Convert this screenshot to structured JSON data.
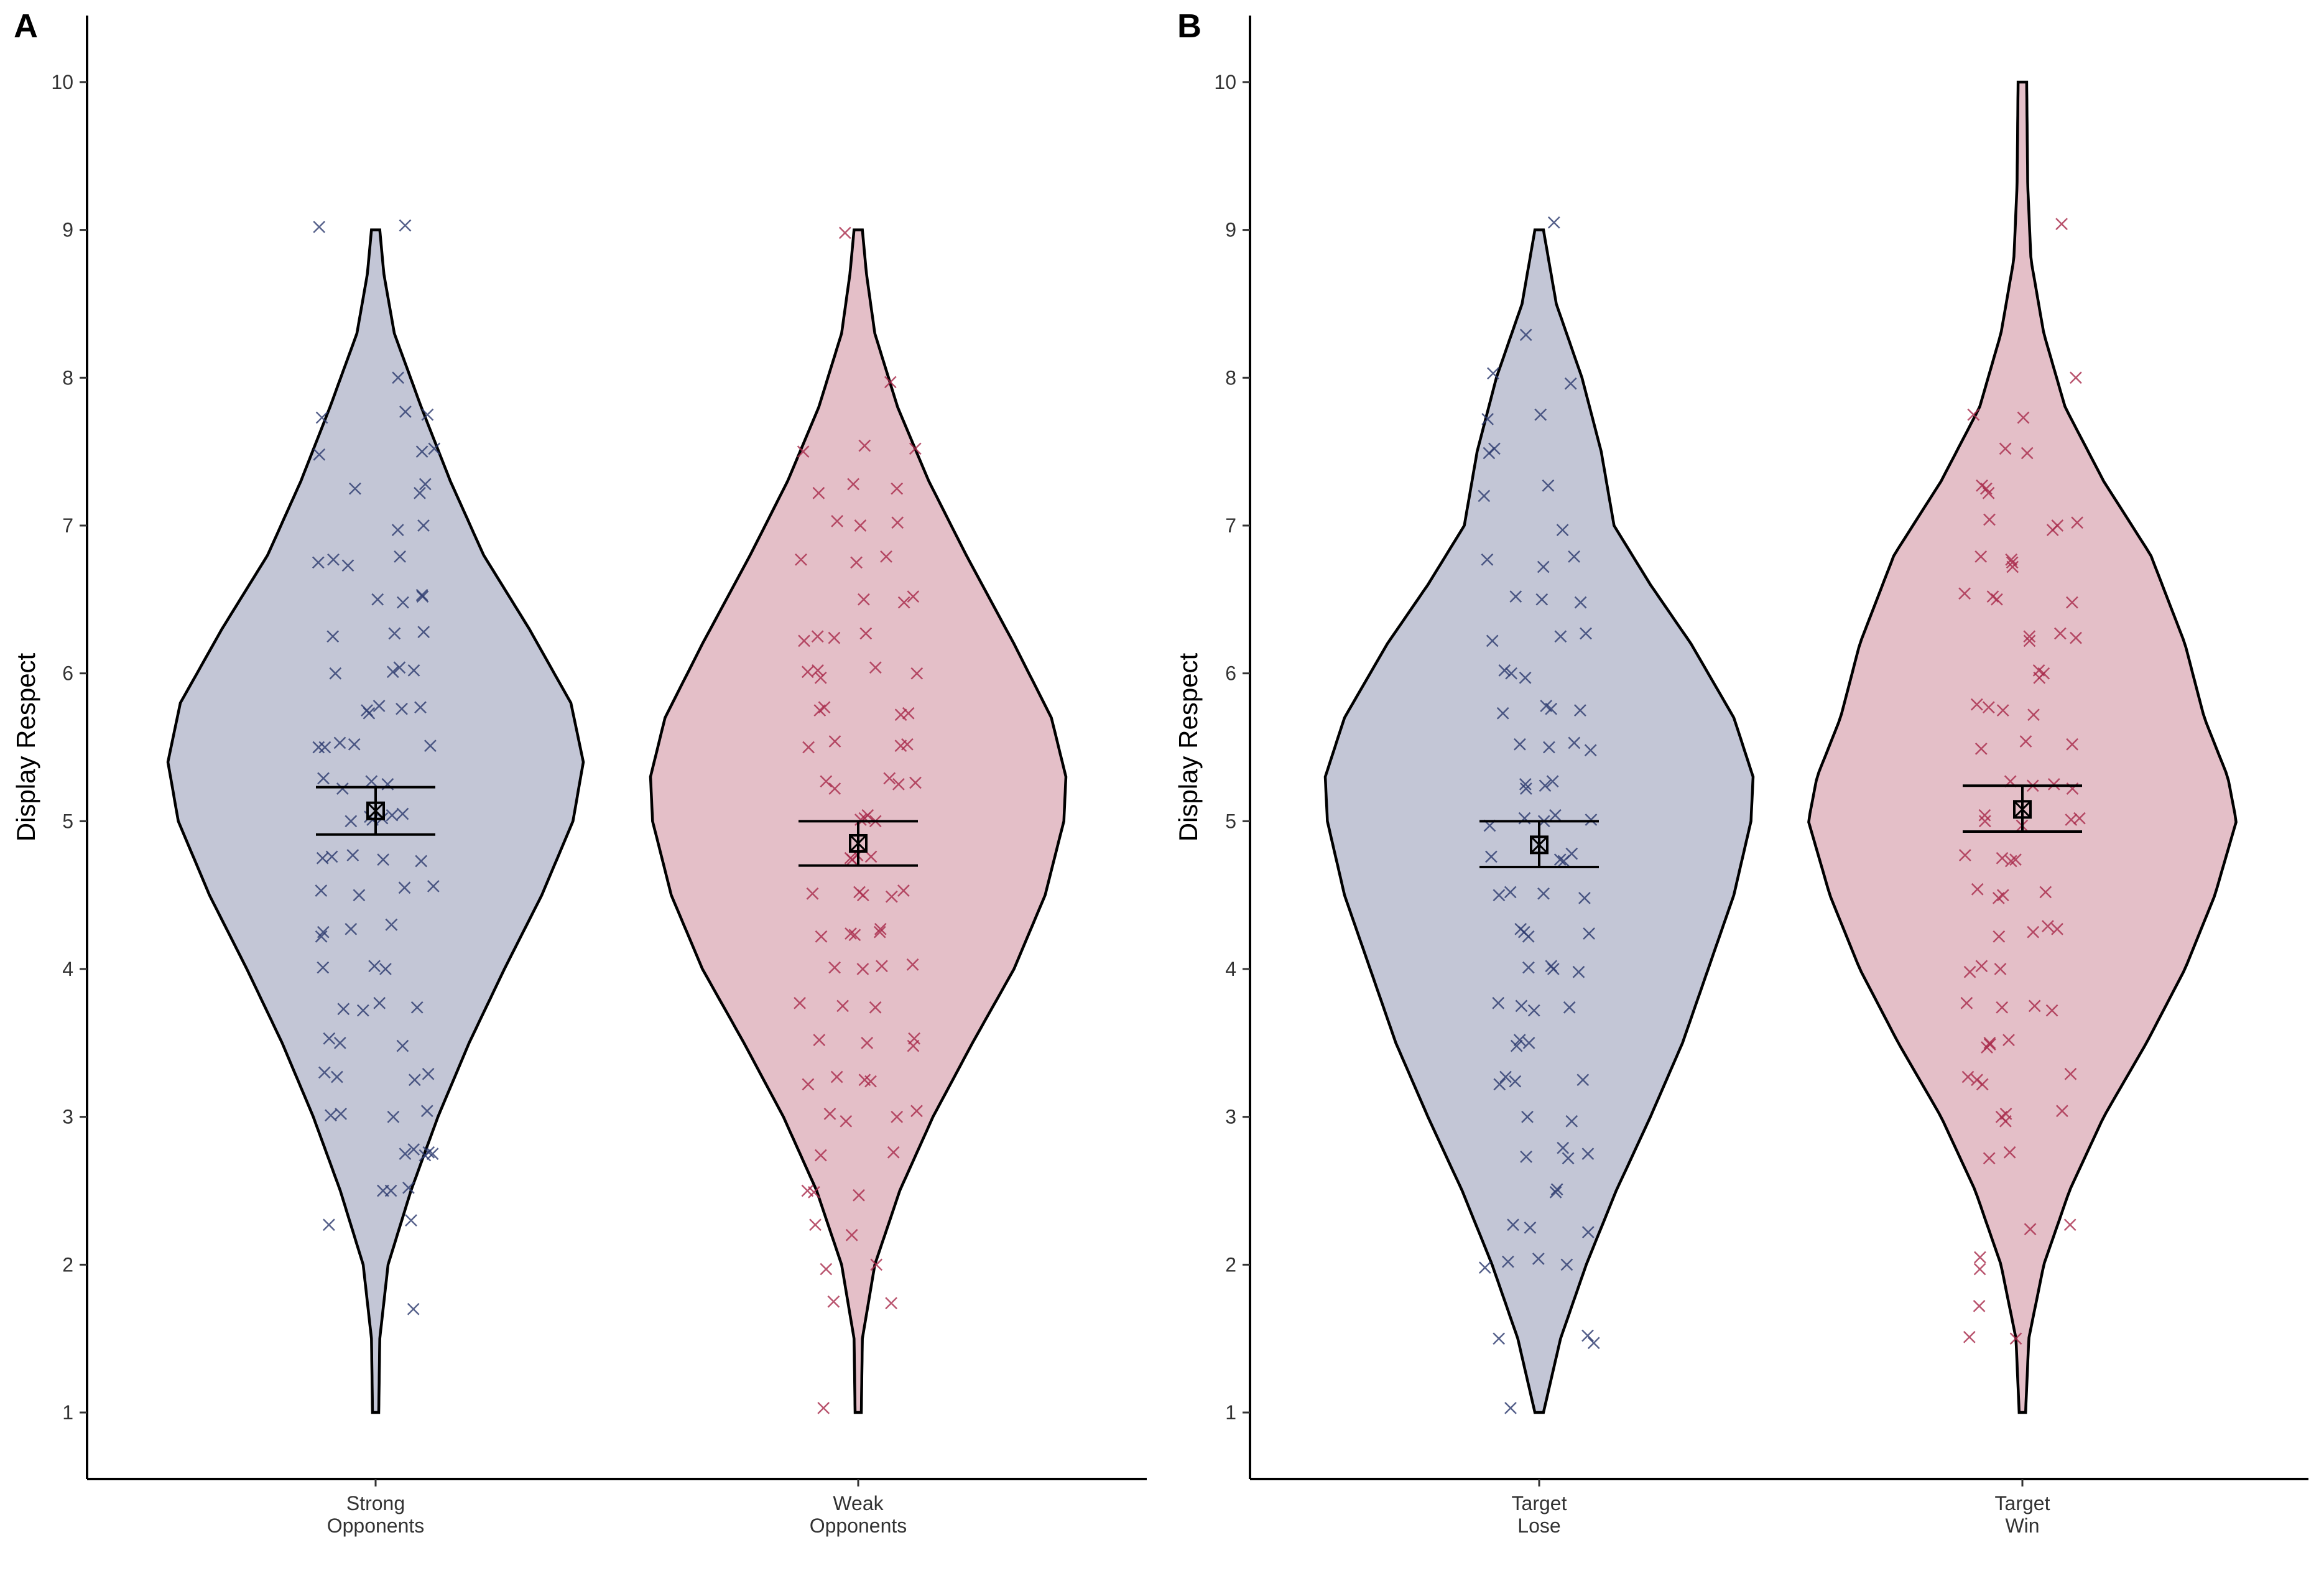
{
  "chart_data": [
    {
      "type": "violin",
      "panel_label": "A",
      "ylabel": "Display Respect",
      "ylim": [
        0.55,
        10.45
      ],
      "yticks": [
        1,
        2,
        3,
        4,
        5,
        6,
        7,
        8,
        9,
        10
      ],
      "categories": [
        "Strong\nOpponents",
        "Weak\nOpponents"
      ],
      "series": [
        {
          "category_lines": [
            "Strong",
            "Opponents"
          ],
          "fill": "#c3c6d6",
          "point_color": "#2c3a6e",
          "mean": 5.07,
          "ci": [
            4.91,
            5.23
          ],
          "density": [
            [
              1.0,
              0.015
            ],
            [
              1.5,
              0.02
            ],
            [
              2.0,
              0.06
            ],
            [
              2.5,
              0.17
            ],
            [
              3.0,
              0.3
            ],
            [
              3.5,
              0.45
            ],
            [
              4.0,
              0.62
            ],
            [
              4.5,
              0.8
            ],
            [
              5.0,
              0.95
            ],
            [
              5.4,
              1.0
            ],
            [
              5.8,
              0.94
            ],
            [
              6.3,
              0.74
            ],
            [
              6.8,
              0.52
            ],
            [
              7.3,
              0.36
            ],
            [
              7.8,
              0.22
            ],
            [
              8.3,
              0.09
            ],
            [
              8.7,
              0.04
            ],
            [
              9.0,
              0.02
            ]
          ],
          "points": [
            1.7,
            2.27,
            2.3,
            2.5,
            2.52,
            2.5,
            2.75,
            2.74,
            2.78,
            2.76,
            2.75,
            3.0,
            3.02,
            3.04,
            3.01,
            3.25,
            3.27,
            3.3,
            3.29,
            3.5,
            3.48,
            3.53,
            3.72,
            3.74,
            3.73,
            3.77,
            4.0,
            4.02,
            4.01,
            4.25,
            4.27,
            4.3,
            4.22,
            4.5,
            4.55,
            4.53,
            4.56,
            4.75,
            4.77,
            4.73,
            4.76,
            4.74,
            5.0,
            5.02,
            5.01,
            5.05,
            5.04,
            5.03,
            5.22,
            5.25,
            5.29,
            5.27,
            5.5,
            5.52,
            5.51,
            5.53,
            5.5,
            5.73,
            5.75,
            5.77,
            5.78,
            5.76,
            6.0,
            6.02,
            6.01,
            6.04,
            6.28,
            6.27,
            6.25,
            6.5,
            6.52,
            6.48,
            6.53,
            6.75,
            6.77,
            6.79,
            6.73,
            6.97,
            7.0,
            7.22,
            7.25,
            7.28,
            7.5,
            7.52,
            7.48,
            7.73,
            7.77,
            7.75,
            8.0,
            9.02,
            9.03
          ]
        },
        {
          "category_lines": [
            "Weak",
            "Opponents"
          ],
          "fill": "#e4bfc8",
          "point_color": "#a8294a",
          "mean": 4.85,
          "ci": [
            4.7,
            5.0
          ],
          "density": [
            [
              1.0,
              0.015
            ],
            [
              1.5,
              0.02
            ],
            [
              2.0,
              0.08
            ],
            [
              2.5,
              0.2
            ],
            [
              3.0,
              0.36
            ],
            [
              3.5,
              0.55
            ],
            [
              4.0,
              0.75
            ],
            [
              4.5,
              0.9
            ],
            [
              5.0,
              0.99
            ],
            [
              5.3,
              1.0
            ],
            [
              5.7,
              0.93
            ],
            [
              6.2,
              0.75
            ],
            [
              6.8,
              0.52
            ],
            [
              7.3,
              0.34
            ],
            [
              7.8,
              0.19
            ],
            [
              8.3,
              0.08
            ],
            [
              8.7,
              0.04
            ],
            [
              9.0,
              0.02
            ]
          ],
          "points": [
            1.03,
            1.74,
            1.75,
            1.97,
            2.0,
            2.2,
            2.27,
            2.47,
            2.5,
            2.49,
            2.74,
            2.76,
            2.97,
            3.0,
            3.04,
            3.02,
            3.22,
            3.25,
            3.27,
            3.24,
            3.48,
            3.5,
            3.52,
            3.53,
            3.74,
            3.77,
            3.75,
            4.0,
            4.02,
            4.01,
            4.03,
            4.22,
            4.24,
            4.27,
            4.25,
            4.23,
            4.5,
            4.52,
            4.49,
            4.51,
            4.53,
            4.75,
            4.77,
            4.74,
            4.76,
            5.0,
            5.02,
            5.01,
            5.04,
            5.22,
            5.25,
            5.27,
            5.26,
            5.29,
            5.5,
            5.52,
            5.54,
            5.51,
            5.73,
            5.75,
            5.77,
            5.72,
            5.97,
            6.0,
            6.02,
            6.04,
            6.01,
            6.22,
            6.25,
            6.27,
            6.24,
            6.5,
            6.52,
            6.48,
            6.75,
            6.77,
            6.79,
            7.0,
            7.02,
            7.03,
            7.22,
            7.25,
            7.28,
            7.5,
            7.52,
            7.54,
            7.97,
            8.98
          ]
        }
      ]
    },
    {
      "type": "violin",
      "panel_label": "B",
      "ylabel": "Display Respect",
      "ylim": [
        0.55,
        10.45
      ],
      "yticks": [
        1,
        2,
        3,
        4,
        5,
        6,
        7,
        8,
        9,
        10
      ],
      "categories": [
        "Target\nLose",
        "Target\nWin"
      ],
      "series": [
        {
          "category_lines": [
            "Target",
            "Lose"
          ],
          "fill": "#c3c6d6",
          "point_color": "#2c3a6e",
          "mean": 4.84,
          "ci": [
            4.69,
            5.0
          ],
          "density": [
            [
              1.0,
              0.02
            ],
            [
              1.5,
              0.1
            ],
            [
              2.0,
              0.22
            ],
            [
              2.5,
              0.36
            ],
            [
              3.0,
              0.52
            ],
            [
              3.5,
              0.67
            ],
            [
              4.0,
              0.79
            ],
            [
              4.5,
              0.91
            ],
            [
              5.0,
              0.99
            ],
            [
              5.3,
              1.0
            ],
            [
              5.7,
              0.91
            ],
            [
              6.2,
              0.71
            ],
            [
              6.6,
              0.52
            ],
            [
              7.0,
              0.35
            ],
            [
              7.5,
              0.29
            ],
            [
              8.0,
              0.2
            ],
            [
              8.5,
              0.08
            ],
            [
              9.0,
              0.02
            ]
          ],
          "points": [
            1.03,
            1.47,
            1.5,
            1.52,
            1.98,
            2.02,
            2.04,
            2.0,
            2.22,
            2.25,
            2.27,
            2.49,
            2.51,
            2.72,
            2.75,
            2.73,
            2.79,
            2.97,
            3.0,
            3.22,
            3.25,
            3.27,
            3.24,
            3.48,
            3.5,
            3.52,
            3.72,
            3.74,
            3.77,
            3.75,
            3.98,
            4.0,
            4.02,
            4.01,
            4.22,
            4.25,
            4.27,
            4.24,
            4.5,
            4.52,
            4.48,
            4.51,
            4.74,
            4.76,
            4.78,
            4.73,
            4.97,
            5.0,
            5.02,
            5.01,
            5.04,
            5.22,
            5.25,
            5.27,
            5.24,
            5.5,
            5.52,
            5.48,
            5.53,
            5.73,
            5.76,
            5.78,
            5.75,
            5.97,
            6.0,
            6.02,
            6.22,
            6.25,
            6.27,
            6.48,
            6.5,
            6.52,
            6.72,
            6.77,
            6.79,
            6.97,
            7.2,
            7.27,
            7.49,
            7.52,
            7.72,
            7.75,
            7.96,
            8.03,
            8.29,
            9.05
          ]
        },
        {
          "category_lines": [
            "Target",
            "Win"
          ],
          "fill": "#e4bfc8",
          "point_color": "#a8294a",
          "mean": 5.08,
          "ci": [
            4.93,
            5.24
          ],
          "density": [
            [
              1.0,
              0.015
            ],
            [
              1.5,
              0.03
            ],
            [
              2.0,
              0.1
            ],
            [
              2.5,
              0.22
            ],
            [
              3.0,
              0.38
            ],
            [
              3.5,
              0.58
            ],
            [
              4.0,
              0.76
            ],
            [
              4.5,
              0.9
            ],
            [
              5.0,
              1.0
            ],
            [
              5.3,
              0.96
            ],
            [
              5.7,
              0.85
            ],
            [
              6.2,
              0.76
            ],
            [
              6.8,
              0.6
            ],
            [
              7.3,
              0.38
            ],
            [
              7.8,
              0.2
            ],
            [
              8.3,
              0.1
            ],
            [
              8.8,
              0.04
            ],
            [
              9.3,
              0.025
            ],
            [
              10.0,
              0.02
            ]
          ],
          "points": [
            1.5,
            1.51,
            1.72,
            1.97,
            2.05,
            2.24,
            2.27,
            2.72,
            2.76,
            2.97,
            3.0,
            3.02,
            3.04,
            3.22,
            3.25,
            3.27,
            3.29,
            3.47,
            3.49,
            3.5,
            3.52,
            3.72,
            3.75,
            3.77,
            3.74,
            3.98,
            4.0,
            4.02,
            4.22,
            4.25,
            4.27,
            4.29,
            4.5,
            4.52,
            4.54,
            4.48,
            4.73,
            4.75,
            4.77,
            4.74,
            4.97,
            5.0,
            5.02,
            5.01,
            5.04,
            5.22,
            5.25,
            5.27,
            5.24,
            5.49,
            5.52,
            5.54,
            5.72,
            5.75,
            5.77,
            5.79,
            5.97,
            6.0,
            6.02,
            6.22,
            6.25,
            6.27,
            6.24,
            6.48,
            6.5,
            6.52,
            6.54,
            6.72,
            6.75,
            6.77,
            6.79,
            6.97,
            7.0,
            7.02,
            7.04,
            7.22,
            7.25,
            7.27,
            7.49,
            7.52,
            7.73,
            7.75,
            8.0,
            9.04
          ]
        }
      ]
    }
  ]
}
